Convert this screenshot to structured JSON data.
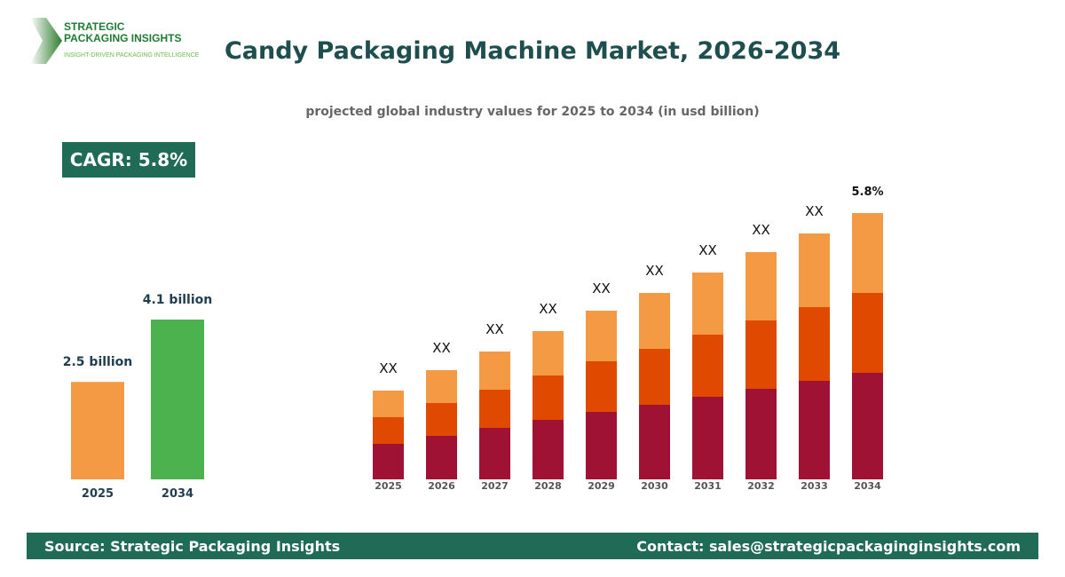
{
  "logo": {
    "line1": "STRATEGIC",
    "line2": "PACKAGING INSIGHTS",
    "tagline": "INSIGHT-DRIVEN PACKAGING INTELLIGENCE"
  },
  "title": "Candy Packaging Machine Market, 2026-2034",
  "subtitle": "projected global industry values for 2025 to 2034 (in usd billion)",
  "cagr": "CAGR: 5.8%",
  "footer": {
    "source": "Source: Strategic Packaging Insights",
    "contact": "Contact: sales@strategicpackaginginsights.com"
  },
  "chart_data": [
    {
      "type": "bar",
      "categories": [
        "2025",
        "2034"
      ],
      "values": [
        2.5,
        4.1
      ],
      "data_labels": [
        "2.5 billion",
        "4.1 billion"
      ],
      "colors": [
        "#f49a45",
        "#4cb24e"
      ],
      "grid": false
    },
    {
      "type": "bar",
      "stacked": true,
      "categories": [
        "2025",
        "2026",
        "2027",
        "2028",
        "2029",
        "2030",
        "2031",
        "2032",
        "2033",
        "2034"
      ],
      "series": [
        {
          "values": [
            40,
            49,
            58,
            67,
            76,
            84,
            93,
            102,
            111,
            120
          ],
          "color": "#a01233"
        },
        {
          "values": [
            30,
            37,
            43,
            50,
            57,
            63,
            70,
            77,
            83,
            90
          ],
          "color": "#e04a00"
        },
        {
          "values": [
            30,
            37,
            43,
            50,
            57,
            63,
            70,
            77,
            83,
            90
          ],
          "color": "#f49a45"
        }
      ],
      "data_labels": [
        "XX",
        "XX",
        "XX",
        "XX",
        "XX",
        "XX",
        "XX",
        "XX",
        "XX",
        "5.8%"
      ],
      "y_axis_shown": false,
      "grid": false
    }
  ]
}
